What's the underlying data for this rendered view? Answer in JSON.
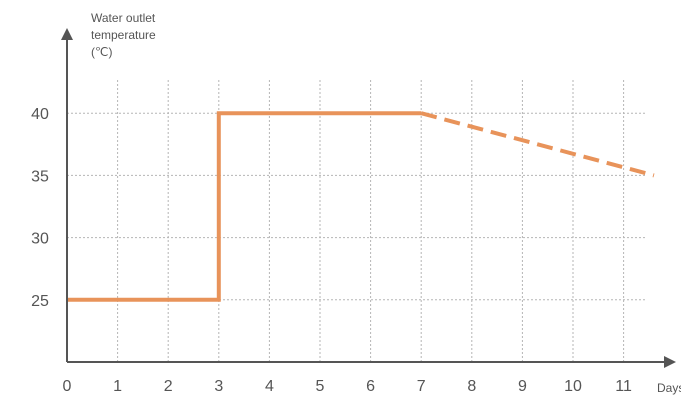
{
  "chart_data": {
    "type": "line",
    "xlabel": "Days",
    "ylabel_lines": [
      "Water outlet",
      "temperature",
      "(℃)"
    ],
    "x_ticks": [
      "0",
      "1",
      "2",
      "3",
      "4",
      "5",
      "6",
      "7",
      "8",
      "9",
      "10",
      "11"
    ],
    "y_ticks": [
      "25",
      "30",
      "35",
      "40"
    ],
    "xlim": [
      0,
      12
    ],
    "ylim": [
      20,
      45
    ],
    "grid": true,
    "series": [
      {
        "style": "solid",
        "color": "#E8935A",
        "points": [
          [
            0,
            25
          ],
          [
            3,
            25
          ],
          [
            3,
            40
          ],
          [
            7,
            40
          ]
        ]
      },
      {
        "style": "dashed",
        "color": "#E8935A",
        "points": [
          [
            7,
            40
          ],
          [
            11.6,
            35
          ]
        ]
      }
    ],
    "colors": {
      "line": "#E8935A",
      "axis": "#555555",
      "grid": "#b5b5b5",
      "text": "#555555"
    }
  }
}
